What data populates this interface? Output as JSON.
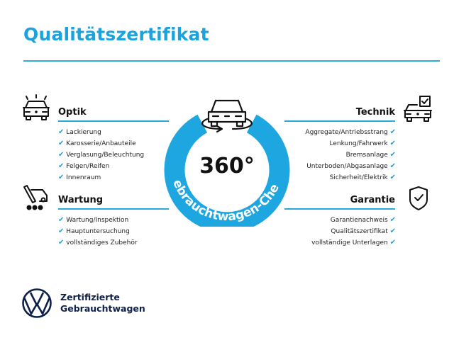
{
  "title": "Qualitätszertifikat",
  "center": {
    "value": "360°",
    "ring_text": "Gebrauchtwagen-Check"
  },
  "sections": {
    "optik": {
      "heading": "Optik",
      "icon": "car-lights-icon",
      "items": [
        "Lackierung",
        "Karosserie/Anbauteile",
        "Verglasung/Beleuchtung",
        "Felgen/Reifen",
        "Innenraum"
      ]
    },
    "wartung": {
      "heading": "Wartung",
      "icon": "service-wrench-icon",
      "items": [
        "Wartung/Inspektion",
        "Hauptuntersuchung",
        "vollständiges Zubehör"
      ]
    },
    "technik": {
      "heading": "Technik",
      "icon": "car-checkbox-icon",
      "items": [
        "Aggregate/Antriebsstrang",
        "Lenkung/Fahrwerk",
        "Bremsanlage",
        "Unterboden/Abgasanlage",
        "Sicherheit/Elektrik"
      ]
    },
    "garantie": {
      "heading": "Garantie",
      "icon": "shield-check-icon",
      "items": [
        "Garantienachweis",
        "Qualitätszertifikat",
        "vollständige Unterlagen"
      ]
    }
  },
  "check_mark": "✔",
  "logo": {
    "line1": "Zertifizierte",
    "line2": "Gebrauchtwagen"
  },
  "colors": {
    "accent": "#1ca2dc",
    "ring": "#1ea6e0",
    "logo": "#0d1f4a"
  }
}
